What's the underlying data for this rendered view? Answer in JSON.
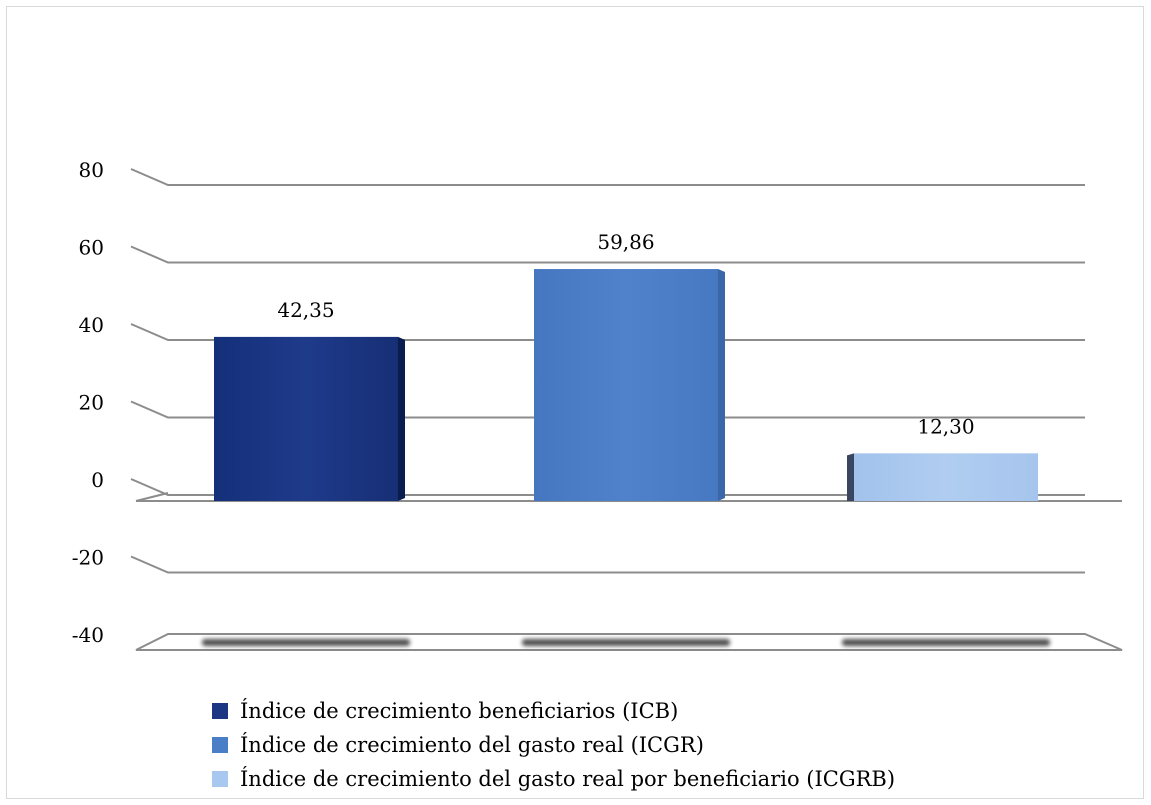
{
  "chart_data": {
    "type": "bar",
    "title": "",
    "xlabel": "",
    "ylabel": "",
    "ylim": [
      -40,
      80
    ],
    "yticks": [
      80,
      60,
      40,
      20,
      0,
      -20,
      -40
    ],
    "grid": true,
    "legend_position": "bottom",
    "series": [
      {
        "name": "Índice de crecimiento beneficiarios (ICB)",
        "value": 42.35,
        "label": "42,35",
        "color": "#1b3683"
      },
      {
        "name": "Índice de crecimiento del gasto real (ICGR)",
        "value": 59.86,
        "label": "59,86",
        "color": "#4a7ec6"
      },
      {
        "name": "Índice de crecimiento del gasto real por beneficiario (ICGRB)",
        "value": 12.3,
        "label": "12,30",
        "color": "#a9c8ef"
      }
    ]
  }
}
